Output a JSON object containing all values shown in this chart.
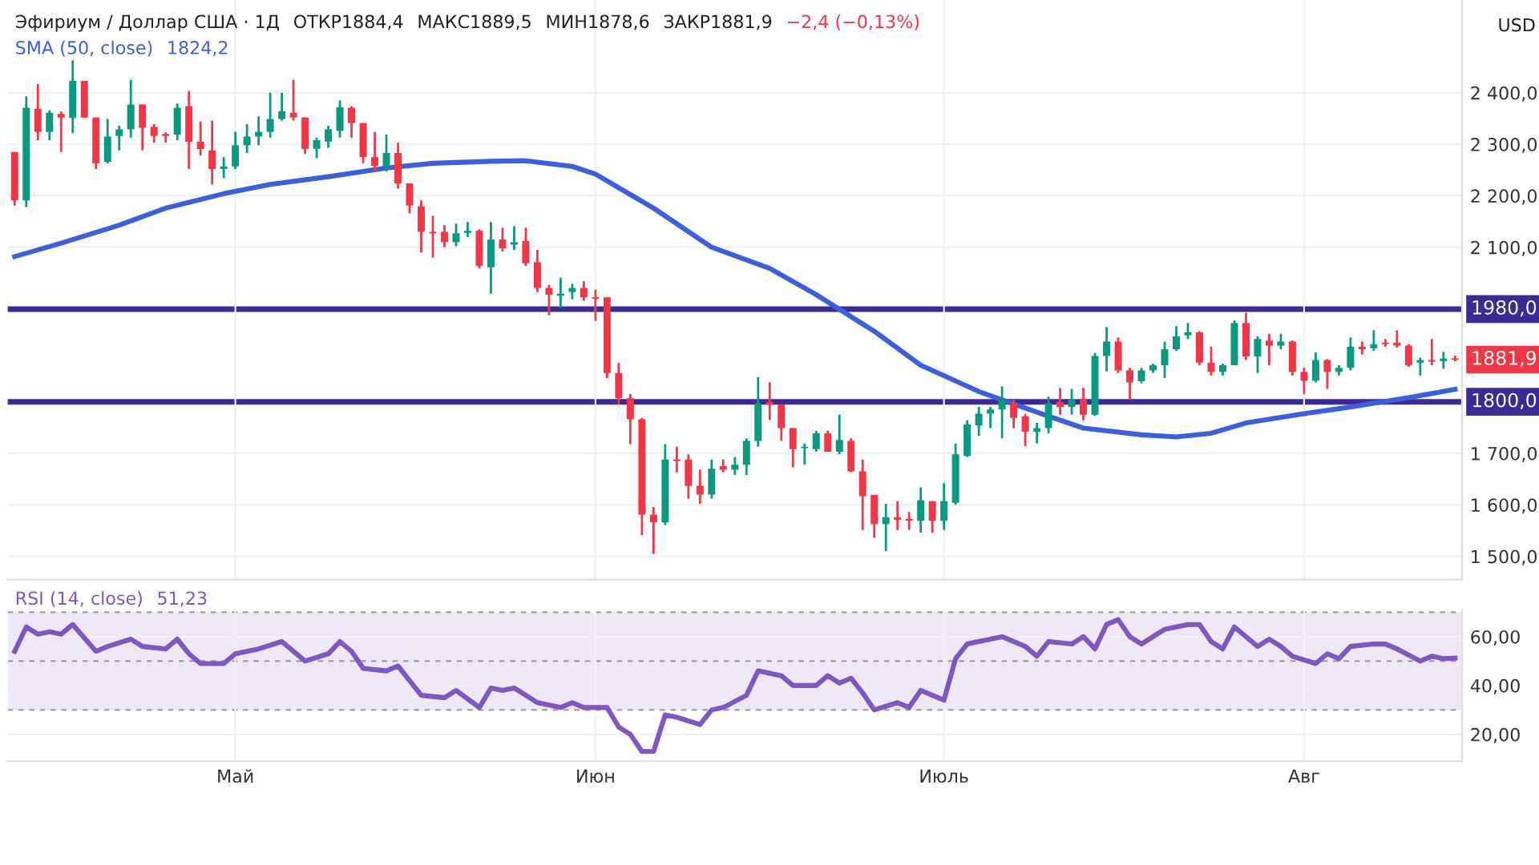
{
  "chart_data": [
    {
      "type": "candlestick",
      "title": "Эфириум / Доллар США · 1Д",
      "categories": [
        null,
        null,
        null,
        null,
        null,
        null,
        null,
        null,
        null,
        null,
        null,
        null,
        null,
        null,
        null,
        null,
        null,
        null,
        null,
        null,
        null,
        null,
        null,
        null,
        null,
        null,
        null,
        null,
        null,
        null,
        null,
        null,
        null,
        null,
        null,
        null,
        null,
        null,
        null,
        null,
        null,
        null,
        null,
        null,
        null,
        null,
        null,
        null,
        null,
        null,
        null,
        null,
        null,
        null,
        null,
        null,
        null,
        null,
        null,
        null,
        null,
        null,
        null,
        null,
        null,
        null,
        null,
        null,
        null,
        null,
        null,
        null,
        null,
        null,
        null,
        null,
        null,
        null,
        null,
        null,
        null,
        null,
        null,
        null,
        null,
        null,
        null,
        null,
        null,
        null,
        null,
        null,
        null,
        null,
        null,
        null,
        null,
        null,
        null,
        null,
        null,
        null,
        null,
        null,
        null,
        null,
        null,
        null,
        null,
        null,
        null,
        null,
        null,
        null,
        null,
        null,
        null,
        null,
        null,
        null,
        null,
        null,
        null,
        null,
        null
      ],
      "ohlc": [
        [
          2285,
          2285,
          2181,
          2191
        ],
        [
          2191,
          2393,
          2178,
          2371
        ],
        [
          2369,
          2417,
          2308,
          2324
        ],
        [
          2324,
          2366,
          2308,
          2361
        ],
        [
          2359,
          2364,
          2285,
          2352
        ],
        [
          2351,
          2466,
          2322,
          2423
        ],
        [
          2423,
          2423,
          2352,
          2352
        ],
        [
          2352,
          2352,
          2252,
          2263
        ],
        [
          2266,
          2349,
          2263,
          2315
        ],
        [
          2316,
          2336,
          2288,
          2329
        ],
        [
          2329,
          2425,
          2313,
          2377
        ],
        [
          2377,
          2377,
          2288,
          2332
        ],
        [
          2334,
          2339,
          2303,
          2316
        ],
        [
          2320,
          2323,
          2303,
          2316
        ],
        [
          2319,
          2379,
          2308,
          2371
        ],
        [
          2374,
          2403,
          2252,
          2305
        ],
        [
          2305,
          2344,
          2278,
          2291
        ],
        [
          2288,
          2346,
          2222,
          2252
        ],
        [
          2252,
          2275,
          2234,
          2257
        ],
        [
          2257,
          2324,
          2252,
          2298
        ],
        [
          2298,
          2339,
          2283,
          2315
        ],
        [
          2315,
          2354,
          2298,
          2324
        ],
        [
          2324,
          2400,
          2313,
          2349
        ],
        [
          2349,
          2400,
          2346,
          2364
        ],
        [
          2361,
          2425,
          2346,
          2352
        ],
        [
          2352,
          2352,
          2281,
          2291
        ],
        [
          2291,
          2313,
          2273,
          2308
        ],
        [
          2305,
          2336,
          2293,
          2329
        ],
        [
          2326,
          2385,
          2313,
          2372
        ],
        [
          2371,
          2374,
          2313,
          2341
        ],
        [
          2341,
          2341,
          2263,
          2275
        ],
        [
          2275,
          2324,
          2247,
          2258
        ],
        [
          2258,
          2319,
          2247,
          2283
        ],
        [
          2283,
          2303,
          2214,
          2224
        ],
        [
          2224,
          2224,
          2166,
          2181
        ],
        [
          2179,
          2191,
          2090,
          2130
        ],
        [
          2130,
          2161,
          2080,
          2127
        ],
        [
          2130,
          2143,
          2100,
          2110
        ],
        [
          2110,
          2146,
          2102,
          2127
        ],
        [
          2128,
          2149,
          2120,
          2132
        ],
        [
          2132,
          2135,
          2059,
          2064
        ],
        [
          2061,
          2149,
          2010,
          2115
        ],
        [
          2115,
          2138,
          2092,
          2098
        ],
        [
          2105,
          2141,
          2095,
          2110
        ],
        [
          2112,
          2138,
          2064,
          2069
        ],
        [
          2071,
          2095,
          2013,
          2021
        ],
        [
          2021,
          2027,
          1968,
          2008
        ],
        [
          2006,
          2041,
          1983,
          2010
        ],
        [
          2013,
          2029,
          1999,
          2021
        ],
        [
          2021,
          2034,
          1996,
          2003
        ],
        [
          2003,
          2018,
          1957,
          2000
        ],
        [
          2003,
          2003,
          1846,
          1856
        ],
        [
          1856,
          1876,
          1795,
          1807
        ],
        [
          1807,
          1815,
          1718,
          1766
        ],
        [
          1766,
          1769,
          1541,
          1581
        ],
        [
          1581,
          1596,
          1505,
          1566
        ],
        [
          1566,
          1718,
          1561,
          1688
        ],
        [
          1688,
          1713,
          1663,
          1685
        ],
        [
          1688,
          1698,
          1612,
          1637
        ],
        [
          1637,
          1668,
          1602,
          1620
        ],
        [
          1620,
          1688,
          1612,
          1670
        ],
        [
          1675,
          1688,
          1663,
          1668
        ],
        [
          1668,
          1693,
          1658,
          1678
        ],
        [
          1678,
          1729,
          1658,
          1724
        ],
        [
          1724,
          1848,
          1713,
          1797
        ],
        [
          1800,
          1838,
          1765,
          1795
        ],
        [
          1795,
          1795,
          1724,
          1749
        ],
        [
          1749,
          1749,
          1673,
          1708
        ],
        [
          1710,
          1719,
          1678,
          1713
        ],
        [
          1708,
          1744,
          1703,
          1739
        ],
        [
          1739,
          1744,
          1703,
          1703
        ],
        [
          1703,
          1775,
          1698,
          1726
        ],
        [
          1724,
          1729,
          1663,
          1665
        ],
        [
          1665,
          1688,
          1551,
          1617
        ],
        [
          1619,
          1619,
          1536,
          1563
        ],
        [
          1563,
          1602,
          1510,
          1576
        ],
        [
          1576,
          1607,
          1551,
          1571
        ],
        [
          1573,
          1586,
          1551,
          1569
        ],
        [
          1569,
          1634,
          1546,
          1609
        ],
        [
          1607,
          1607,
          1546,
          1569
        ],
        [
          1569,
          1642,
          1551,
          1607
        ],
        [
          1604,
          1719,
          1600,
          1698
        ],
        [
          1695,
          1764,
          1693,
          1756
        ],
        [
          1754,
          1790,
          1734,
          1777
        ],
        [
          1777,
          1790,
          1749,
          1785
        ],
        [
          1785,
          1830,
          1729,
          1803
        ],
        [
          1797,
          1805,
          1749,
          1769
        ],
        [
          1772,
          1777,
          1714,
          1742
        ],
        [
          1742,
          1759,
          1719,
          1749
        ],
        [
          1749,
          1810,
          1739,
          1797
        ],
        [
          1800,
          1827,
          1775,
          1790
        ],
        [
          1790,
          1825,
          1775,
          1805
        ],
        [
          1805,
          1827,
          1764,
          1775
        ],
        [
          1775,
          1895,
          1773,
          1889
        ],
        [
          1889,
          1945,
          1859,
          1917
        ],
        [
          1917,
          1925,
          1856,
          1861
        ],
        [
          1861,
          1866,
          1805,
          1838
        ],
        [
          1840,
          1866,
          1836,
          1861
        ],
        [
          1861,
          1874,
          1856,
          1871
        ],
        [
          1871,
          1917,
          1846,
          1902
        ],
        [
          1902,
          1947,
          1899,
          1927
        ],
        [
          1929,
          1953,
          1922,
          1935
        ],
        [
          1935,
          1937,
          1871,
          1876
        ],
        [
          1876,
          1907,
          1851,
          1858
        ],
        [
          1858,
          1874,
          1851,
          1871
        ],
        [
          1871,
          1958,
          1871,
          1953
        ],
        [
          1953,
          1973,
          1881,
          1888
        ],
        [
          1888,
          1927,
          1856,
          1922
        ],
        [
          1919,
          1932,
          1871,
          1909
        ],
        [
          1909,
          1932,
          1902,
          1917
        ],
        [
          1917,
          1919,
          1851,
          1858
        ],
        [
          1858,
          1866,
          1815,
          1841
        ],
        [
          1841,
          1896,
          1838,
          1881
        ],
        [
          1881,
          1883,
          1825,
          1858
        ],
        [
          1858,
          1871,
          1851,
          1866
        ],
        [
          1866,
          1925,
          1861,
          1907
        ],
        [
          1907,
          1917,
          1892,
          1902
        ],
        [
          1904,
          1939,
          1899,
          1912
        ],
        [
          1915,
          1922,
          1907,
          1912
        ],
        [
          1915,
          1939,
          1905,
          1909
        ],
        [
          1909,
          1912,
          1868,
          1871
        ],
        [
          1876,
          1886,
          1851,
          1881
        ],
        [
          1881,
          1922,
          1871,
          1878
        ],
        [
          1879,
          1897,
          1864,
          1884
        ],
        [
          1884.4,
          1889.5,
          1878.6,
          1881.9
        ]
      ],
      "series": [
        {
          "name": "SMA (50, close)",
          "type": "line",
          "color": "#3c5ee0",
          "values": [
            2082,
            null,
            null,
            null,
            2108,
            null,
            null,
            null,
            null,
            2143,
            null,
            null,
            null,
            2176,
            null,
            null,
            null,
            null,
            2204,
            null,
            null,
            null,
            2222,
            null,
            null,
            null,
            null,
            2237,
            null,
            null,
            null,
            null,
            2254,
            null,
            null,
            null,
            2263,
            null,
            null,
            null,
            null,
            2267,
            null,
            null,
            2268,
            null,
            null,
            null,
            2257,
            null,
            2242,
            null,
            null,
            null,
            null,
            2176,
            null,
            null,
            null,
            null,
            2100,
            null,
            null,
            null,
            null,
            2059,
            null,
            null,
            null,
            2008,
            null,
            null,
            null,
            null,
            1937,
            null,
            null,
            null,
            1871,
            null,
            null,
            null,
            null,
            1820,
            null,
            null,
            null,
            null,
            1780,
            null,
            null,
            null,
            1749,
            null,
            null,
            null,
            null,
            1736,
            null,
            null,
            1732,
            null,
            null,
            1739,
            null,
            null,
            1759,
            null,
            null,
            null,
            null,
            1777,
            null,
            null,
            null,
            1790,
            null,
            null,
            null,
            null,
            1808,
            null,
            null,
            null,
            1824.2
          ]
        }
      ],
      "ylim": [
        1455,
        2580
      ],
      "yticks": [
        {
          "value": 1500,
          "label": "1 500,0"
        },
        {
          "value": 1600,
          "label": "1 600,0"
        },
        {
          "value": 1700,
          "label": "1 700,0"
        },
        {
          "value": 2100,
          "label": "2 100,0"
        },
        {
          "value": 2200,
          "label": "2 200,0"
        },
        {
          "value": 2300,
          "label": "2 300,0"
        },
        {
          "value": 2400,
          "label": "2 400,0"
        }
      ],
      "tick_labels": "y",
      "grid": true,
      "ref_lines": [
        {
          "axis": "y",
          "value": 1980,
          "label": "1980,0",
          "color": "#3d2a99",
          "line_style": "solid"
        },
        {
          "axis": "y",
          "value": 1800,
          "label": "1800,0",
          "color": "#3d2a99",
          "line_style": "solid"
        }
      ],
      "annotations": [
        "ОТКР1884,4",
        "МАКС1889,5",
        "МИН1878,6",
        "ЗАКР1881,9",
        "−2,4 (−0,13%)",
        "1824,2",
        "1881,9",
        "USD"
      ]
    },
    {
      "type": "line",
      "categories": [
        null,
        null,
        null,
        null,
        null,
        null,
        null,
        null,
        null,
        null,
        null,
        null,
        null,
        null,
        null,
        null,
        null,
        null,
        null,
        "Май",
        null,
        null,
        null,
        null,
        null,
        null,
        null,
        null,
        null,
        null,
        null,
        null,
        null,
        null,
        null,
        null,
        null,
        null,
        null,
        null,
        null,
        null,
        null,
        null,
        null,
        null,
        null,
        null,
        null,
        null,
        "Июн",
        null,
        null,
        null,
        null,
        null,
        null,
        null,
        null,
        null,
        null,
        null,
        null,
        null,
        null,
        null,
        null,
        null,
        null,
        null,
        null,
        null,
        null,
        null,
        null,
        null,
        null,
        null,
        null,
        null,
        "Июль",
        null,
        null,
        null,
        null,
        null,
        null,
        null,
        null,
        null,
        null,
        null,
        null,
        null,
        null,
        null,
        null,
        null,
        null,
        null,
        null,
        null,
        null,
        null,
        null,
        null,
        null,
        null,
        null,
        null,
        null,
        "Авг",
        null,
        null,
        null,
        null,
        null,
        null,
        null,
        null,
        null,
        null,
        null,
        null,
        null
      ],
      "series": [
        {
          "name": "RSI (14, close)",
          "color": "#7e57c2",
          "values": [
            54,
            64,
            61,
            62,
            61,
            65,
            null,
            54,
            56,
            null,
            59,
            56,
            null,
            55,
            59,
            53,
            49,
            null,
            49,
            53,
            null,
            55,
            null,
            58,
            null,
            50,
            null,
            53,
            58,
            54,
            47,
            null,
            46,
            48,
            42,
            36,
            null,
            35,
            38,
            null,
            31,
            39,
            38,
            39,
            null,
            33,
            null,
            31,
            33,
            31,
            null,
            31,
            23,
            20,
            13,
            13,
            28,
            27,
            null,
            24,
            30,
            31,
            null,
            36,
            46,
            null,
            44,
            40,
            null,
            40,
            44,
            41,
            43,
            37,
            30,
            null,
            33,
            31,
            38,
            null,
            34,
            51,
            57,
            null,
            59,
            60,
            null,
            56,
            52,
            58,
            null,
            57,
            60,
            55,
            65,
            67,
            60,
            57,
            60,
            63,
            null,
            65,
            65,
            58,
            55,
            64,
            null,
            56,
            59,
            56,
            52,
            null,
            49,
            53,
            51,
            56,
            null,
            57,
            57,
            55,
            null,
            50,
            52,
            51,
            51.23
          ]
        }
      ],
      "ylim": [
        9,
        71
      ],
      "yticks": [
        {
          "value": 20,
          "label": "20,00"
        },
        {
          "value": 40,
          "label": "40,00"
        },
        {
          "value": 60,
          "label": "60,00"
        }
      ],
      "grid": true,
      "ref_lines": [
        {
          "axis": "y",
          "value": 70,
          "color": "#a0a0a0",
          "line_style": "dashed"
        },
        {
          "axis": "y",
          "value": 50,
          "color": "#a0a0a0",
          "line_style": "dashed"
        },
        {
          "axis": "y",
          "value": 30,
          "color": "#a0a0a0",
          "line_style": "dashed"
        }
      ],
      "bands": [
        {
          "axis": "y",
          "from": 30,
          "to": 70,
          "color": "#ede7f6"
        }
      ],
      "annotations": [
        "51,23"
      ]
    }
  ]
}
